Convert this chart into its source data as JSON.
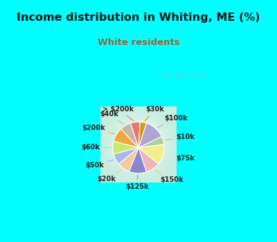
{
  "title": "Income distribution in Whiting, ME (%)",
  "subtitle": "White residents",
  "title_color": "#111111",
  "subtitle_color": "#a06030",
  "bg_cyan": "#00ffff",
  "chart_bg_color": "#e8f5ee",
  "labels": [
    "$100k",
    "$10k",
    "$75k",
    "$150k",
    "$125k",
    "$20k",
    "$50k",
    "$60k",
    "$200k",
    "$40k",
    "> $200k",
    "$30k"
  ],
  "values": [
    13,
    5,
    13,
    9,
    11,
    8,
    7,
    8,
    9,
    7,
    6,
    4
  ],
  "colors": [
    "#b0a4d4",
    "#b0cfa0",
    "#f0f08a",
    "#f0b4bc",
    "#8888cc",
    "#f5c8a0",
    "#a8b8e8",
    "#c8e870",
    "#f0a840",
    "#c8b8a0",
    "#e87878",
    "#c8a018"
  ],
  "startangle": 72,
  "figsize": [
    4.0,
    3.5
  ],
  "dpi": 100,
  "watermark": "City-Data.com"
}
